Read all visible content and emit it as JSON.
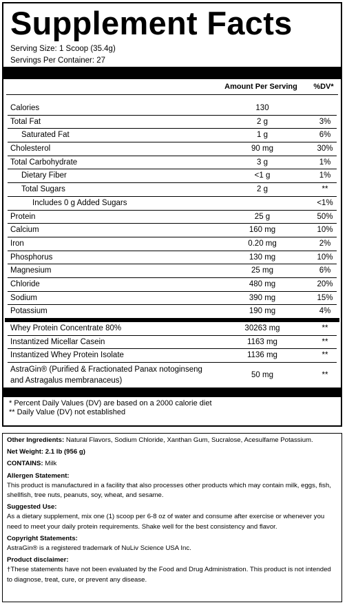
{
  "facts": {
    "title": "Supplement Facts",
    "serving_size": "Serving Size: 1 Scoop (35.4g)",
    "servings": "Servings Per Container: 27",
    "header": {
      "amount": "Amount Per Serving",
      "dv": "%DV*"
    },
    "nutrients": [
      {
        "label": "Calories",
        "amount": "130",
        "dv": ""
      },
      {
        "label": "Total Fat",
        "amount": "2 g",
        "dv": "3%"
      },
      {
        "label": "Saturated Fat",
        "amount": "1 g",
        "dv": "6%"
      },
      {
        "label": "Cholesterol",
        "amount": "90 mg",
        "dv": "30%"
      },
      {
        "label": "Total Carbohydrate",
        "amount": "3 g",
        "dv": "1%"
      },
      {
        "label": "Dietary Fiber",
        "amount": "<1 g",
        "dv": "1%"
      },
      {
        "label": "Total Sugars",
        "amount": "2 g",
        "dv": "**"
      },
      {
        "label": "Includes 0 g Added Sugars",
        "amount": "",
        "dv": "<1%"
      },
      {
        "label": "Protein",
        "amount": "25 g",
        "dv": "50%"
      },
      {
        "label": "Calcium",
        "amount": "160 mg",
        "dv": "10%"
      },
      {
        "label": "Iron",
        "amount": "0.20 mg",
        "dv": "2%"
      },
      {
        "label": "Phosphorus",
        "amount": "130 mg",
        "dv": "10%"
      },
      {
        "label": "Magnesium",
        "amount": "25 mg",
        "dv": "6%"
      },
      {
        "label": "Chloride",
        "amount": "480 mg",
        "dv": "20%"
      },
      {
        "label": "Sodium",
        "amount": "390 mg",
        "dv": "15%"
      },
      {
        "label": "Potassium",
        "amount": "190 mg",
        "dv": "4%"
      }
    ],
    "ingredients": [
      {
        "label": "Whey Protein Concentrate 80%",
        "amount": "30263 mg",
        "dv": "**"
      },
      {
        "label": "Instantized Micellar Casein",
        "amount": "1163 mg",
        "dv": "**"
      },
      {
        "label": "Instantized Whey Protein Isolate",
        "amount": "1136 mg",
        "dv": "**"
      },
      {
        "label": "AstraGin® (Purified & Fractionated Panax notoginseng and Astragalus membranaceus)",
        "amount": "50 mg",
        "dv": "**"
      }
    ],
    "footnotes": [
      "* Percent Daily Values (DV) are based on a 2000 calorie diet",
      "** Daily Value (DV) not established"
    ]
  },
  "info": {
    "other_ingredients": {
      "label": "Other Ingredients:",
      "text": "Natural Flavors, Sodium Chloride, Xanthan Gum, Sucralose, Acesulfame Potassium."
    },
    "net_weight": "Net Weight: 2.1 lb (956 g)",
    "contains": {
      "label": "CONTAINS:",
      "text": "Milk"
    },
    "sections": [
      {
        "heading": "Allergen Statement:",
        "text": "This product is manufactured in a facility that also processes other products which may contain milk, eggs, fish, shellfish, tree nuts, peanuts, soy, wheat, and sesame."
      },
      {
        "heading": "Suggested Use:",
        "text": "As a dietary supplement, mix one (1) scoop per 6-8 oz of water and consume after exercise or whenever you need to meet your daily protein requirements. Shake well for the best consistency and flavor."
      },
      {
        "heading": "Copyright Statements:",
        "text": "AstraGin® is a registered trademark of NuLiv Science USA Inc."
      },
      {
        "heading": "Product disclaimer:",
        "text": "†These statements have not been evaluated by the Food and Drug Administration. This product is not intended to diagnose, treat, cure, or prevent any disease."
      }
    ]
  }
}
